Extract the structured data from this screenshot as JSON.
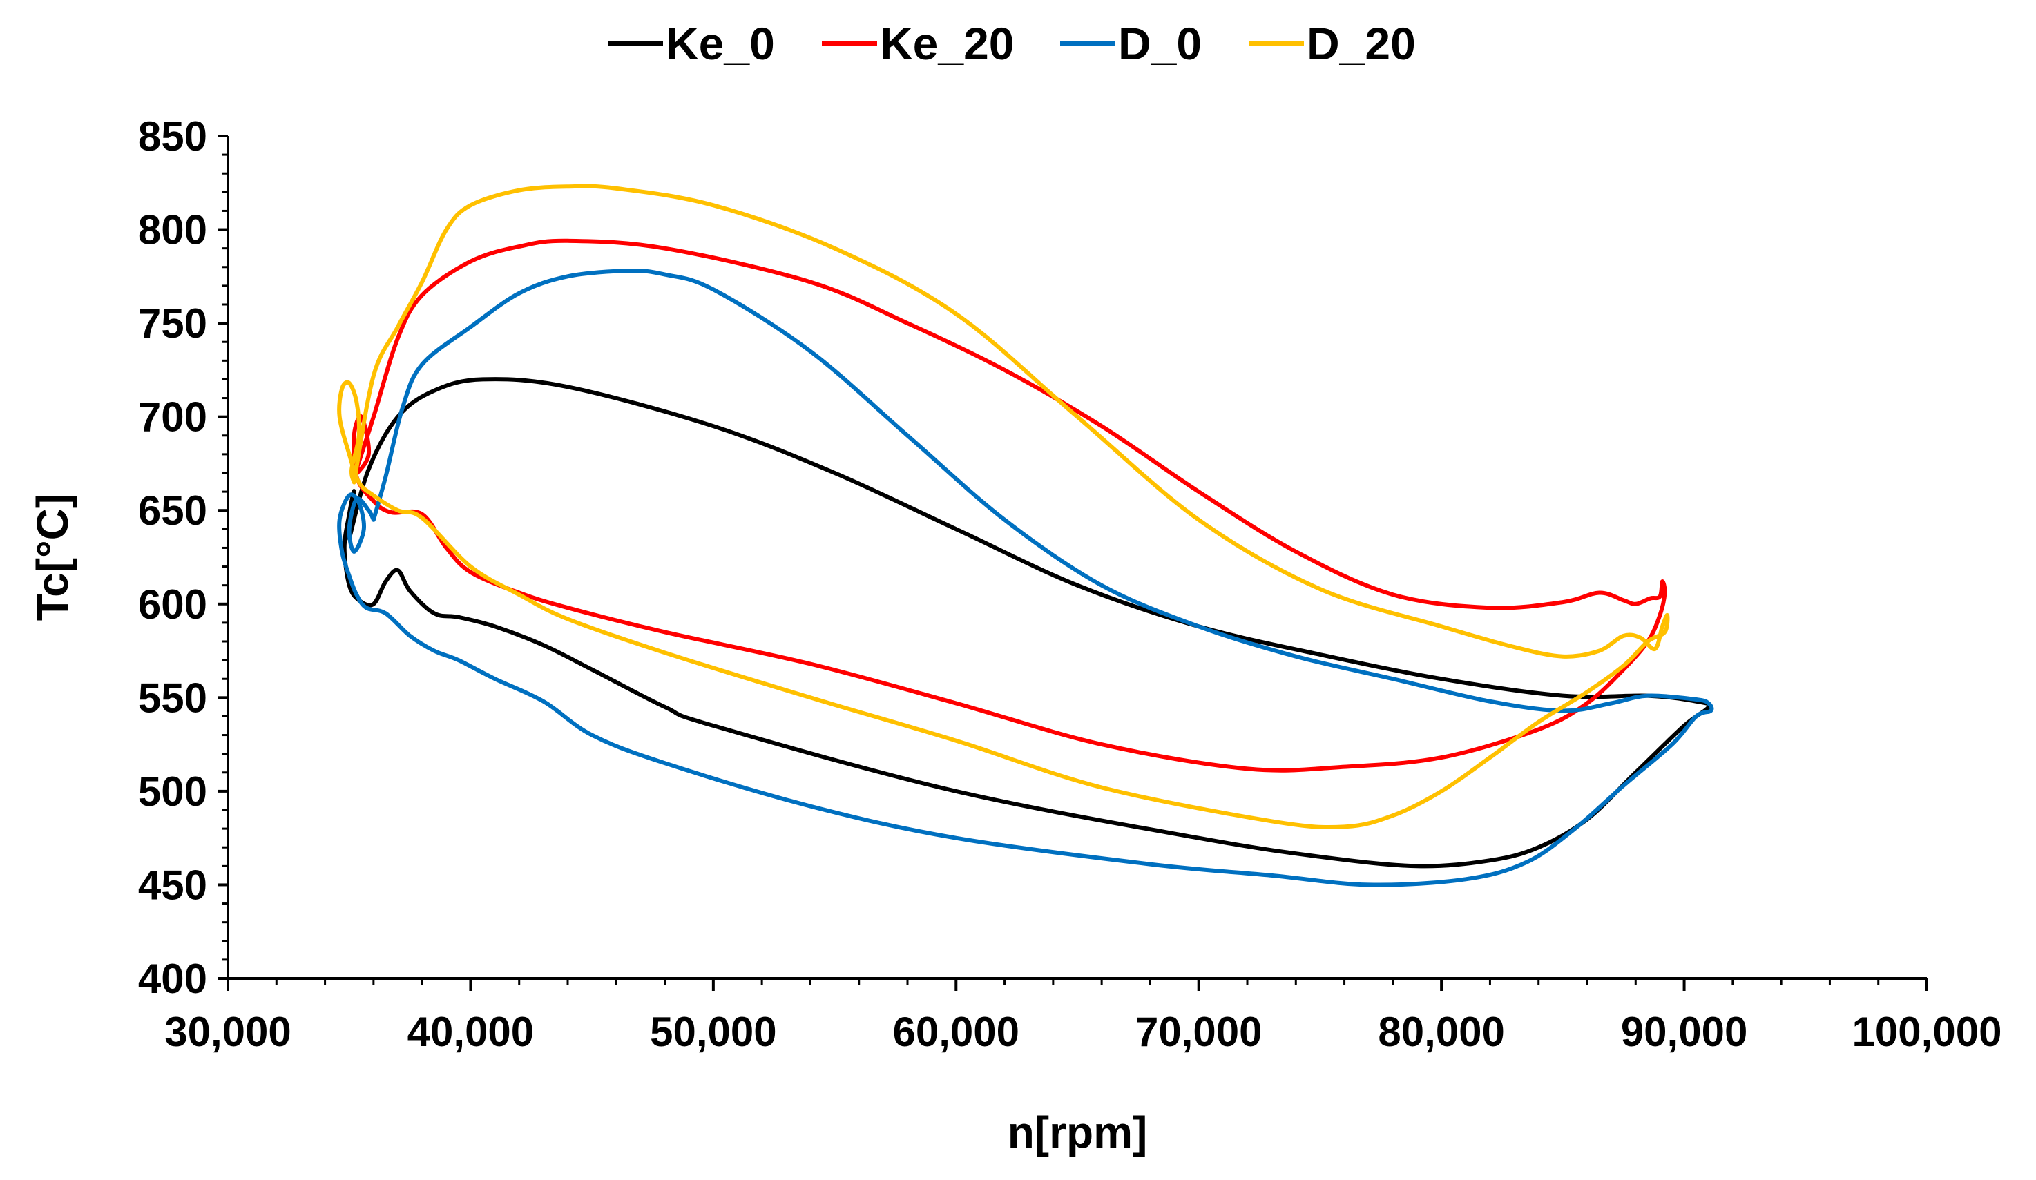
{
  "chart_data": {
    "type": "line",
    "title": "",
    "xlabel": "n[rpm]",
    "ylabel": "Tc[°C]",
    "xlim": [
      30000,
      100000
    ],
    "ylim": [
      400,
      850
    ],
    "x_ticks": [
      30000,
      40000,
      50000,
      60000,
      70000,
      80000,
      90000,
      100000
    ],
    "x_tick_labels": [
      "30,000",
      "40,000",
      "50,000",
      "60,000",
      "70,000",
      "80,000",
      "90,000",
      "100,000"
    ],
    "y_ticks": [
      400,
      450,
      500,
      550,
      600,
      650,
      700,
      750,
      800,
      850
    ],
    "y_tick_labels": [
      "400",
      "450",
      "500",
      "550",
      "600",
      "650",
      "700",
      "750",
      "800",
      "850"
    ],
    "grid": false,
    "legend_position": "top",
    "series": [
      {
        "name": "Ke_0",
        "color": "#000000",
        "points": [
          [
            35000,
            635
          ],
          [
            35800,
            672
          ],
          [
            37000,
            700
          ],
          [
            38500,
            714
          ],
          [
            40500,
            720
          ],
          [
            44000,
            716
          ],
          [
            50000,
            695
          ],
          [
            55000,
            670
          ],
          [
            60000,
            640
          ],
          [
            65000,
            610
          ],
          [
            70000,
            588
          ],
          [
            75000,
            573
          ],
          [
            80000,
            560
          ],
          [
            85000,
            551
          ],
          [
            88500,
            551
          ],
          [
            90500,
            548
          ],
          [
            91000,
            545
          ],
          [
            90000,
            535
          ],
          [
            88000,
            510
          ],
          [
            86000,
            485
          ],
          [
            84000,
            470
          ],
          [
            82000,
            463
          ],
          [
            79000,
            460
          ],
          [
            75000,
            465
          ],
          [
            70000,
            475
          ],
          [
            60000,
            500
          ],
          [
            50000,
            535
          ],
          [
            48000,
            545
          ],
          [
            45000,
            565
          ],
          [
            43000,
            578
          ],
          [
            41000,
            588
          ],
          [
            39500,
            593
          ],
          [
            38500,
            595
          ],
          [
            37500,
            607
          ],
          [
            37000,
            618
          ],
          [
            36500,
            612
          ],
          [
            36000,
            600
          ],
          [
            35400,
            602
          ],
          [
            35000,
            610
          ],
          [
            34800,
            630
          ],
          [
            35000,
            648
          ],
          [
            35200,
            660
          ],
          [
            35000,
            635
          ]
        ]
      },
      {
        "name": "Ke_20",
        "color": "#FF0000",
        "points": [
          [
            35200,
            668
          ],
          [
            36000,
            700
          ],
          [
            37000,
            742
          ],
          [
            38000,
            765
          ],
          [
            40000,
            783
          ],
          [
            42000,
            791
          ],
          [
            44000,
            794
          ],
          [
            48000,
            790
          ],
          [
            54000,
            772
          ],
          [
            58000,
            750
          ],
          [
            62000,
            725
          ],
          [
            66000,
            695
          ],
          [
            70000,
            660
          ],
          [
            74000,
            628
          ],
          [
            78000,
            605
          ],
          [
            82000,
            598
          ],
          [
            85000,
            601
          ],
          [
            86500,
            606
          ],
          [
            87500,
            602
          ],
          [
            88000,
            600
          ],
          [
            88600,
            603
          ],
          [
            89000,
            604
          ],
          [
            89100,
            612
          ],
          [
            89200,
            606
          ],
          [
            89000,
            594
          ],
          [
            88500,
            580
          ],
          [
            87500,
            565
          ],
          [
            86000,
            547
          ],
          [
            84000,
            533
          ],
          [
            80000,
            518
          ],
          [
            76000,
            513
          ],
          [
            72000,
            512
          ],
          [
            66000,
            525
          ],
          [
            60000,
            547
          ],
          [
            54000,
            568
          ],
          [
            48000,
            585
          ],
          [
            44000,
            598
          ],
          [
            42000,
            606
          ],
          [
            40000,
            617
          ],
          [
            39000,
            630
          ],
          [
            38000,
            648
          ],
          [
            36700,
            649
          ],
          [
            36000,
            655
          ],
          [
            35300,
            668
          ],
          [
            35200,
            690
          ],
          [
            35500,
            700
          ],
          [
            35800,
            680
          ],
          [
            35200,
            668
          ]
        ]
      },
      {
        "name": "D_0",
        "color": "#0070C0",
        "points": [
          [
            36000,
            645
          ],
          [
            36500,
            668
          ],
          [
            37200,
            705
          ],
          [
            38000,
            728
          ],
          [
            40000,
            748
          ],
          [
            42000,
            766
          ],
          [
            44000,
            775
          ],
          [
            46500,
            778
          ],
          [
            48000,
            776
          ],
          [
            50000,
            768
          ],
          [
            54000,
            735
          ],
          [
            58000,
            690
          ],
          [
            62000,
            645
          ],
          [
            66000,
            610
          ],
          [
            70000,
            588
          ],
          [
            74000,
            572
          ],
          [
            78000,
            560
          ],
          [
            82000,
            548
          ],
          [
            85000,
            543
          ],
          [
            87000,
            547
          ],
          [
            88500,
            551
          ],
          [
            90500,
            549
          ],
          [
            91000,
            547
          ],
          [
            91100,
            543
          ],
          [
            90500,
            540
          ],
          [
            89500,
            525
          ],
          [
            87500,
            503
          ],
          [
            85500,
            480
          ],
          [
            83500,
            462
          ],
          [
            81000,
            453
          ],
          [
            77000,
            450
          ],
          [
            73000,
            455
          ],
          [
            68000,
            461
          ],
          [
            60000,
            475
          ],
          [
            54000,
            492
          ],
          [
            48000,
            515
          ],
          [
            45000,
            530
          ],
          [
            43000,
            548
          ],
          [
            41000,
            560
          ],
          [
            39500,
            570
          ],
          [
            38500,
            575
          ],
          [
            37500,
            583
          ],
          [
            36500,
            595
          ],
          [
            35700,
            598
          ],
          [
            35300,
            605
          ],
          [
            35000,
            615
          ],
          [
            34700,
            628
          ],
          [
            34600,
            645
          ],
          [
            35000,
            658
          ],
          [
            35400,
            654
          ],
          [
            35600,
            640
          ],
          [
            35200,
            628
          ],
          [
            35000,
            640
          ],
          [
            35300,
            656
          ],
          [
            35800,
            650
          ],
          [
            36000,
            645
          ]
        ]
      },
      {
        "name": "D_20",
        "color": "#FFC000",
        "points": [
          [
            35200,
            665
          ],
          [
            36000,
            722
          ],
          [
            37000,
            748
          ],
          [
            38000,
            772
          ],
          [
            39000,
            800
          ],
          [
            40000,
            813
          ],
          [
            42000,
            821
          ],
          [
            44000,
            823
          ],
          [
            46000,
            822
          ],
          [
            50000,
            813
          ],
          [
            55000,
            790
          ],
          [
            60000,
            755
          ],
          [
            65000,
            700
          ],
          [
            70000,
            645
          ],
          [
            75000,
            608
          ],
          [
            80000,
            588
          ],
          [
            83000,
            577
          ],
          [
            85000,
            572
          ],
          [
            86500,
            575
          ],
          [
            87500,
            583
          ],
          [
            88200,
            582
          ],
          [
            88800,
            576
          ],
          [
            89100,
            588
          ],
          [
            89300,
            594
          ],
          [
            89200,
            585
          ],
          [
            88500,
            580
          ],
          [
            87500,
            567
          ],
          [
            86000,
            553
          ],
          [
            84000,
            537
          ],
          [
            82000,
            518
          ],
          [
            80000,
            500
          ],
          [
            78000,
            487
          ],
          [
            76000,
            481
          ],
          [
            73000,
            484
          ],
          [
            66000,
            502
          ],
          [
            60000,
            527
          ],
          [
            54000,
            550
          ],
          [
            48000,
            574
          ],
          [
            44000,
            592
          ],
          [
            42000,
            605
          ],
          [
            40000,
            620
          ],
          [
            38000,
            646
          ],
          [
            37000,
            650
          ],
          [
            36000,
            658
          ],
          [
            35400,
            665
          ],
          [
            35000,
            680
          ],
          [
            34600,
            700
          ],
          [
            34700,
            715
          ],
          [
            35000,
            718
          ],
          [
            35300,
            708
          ],
          [
            35400,
            690
          ],
          [
            35100,
            672
          ],
          [
            35200,
            665
          ]
        ]
      }
    ]
  }
}
